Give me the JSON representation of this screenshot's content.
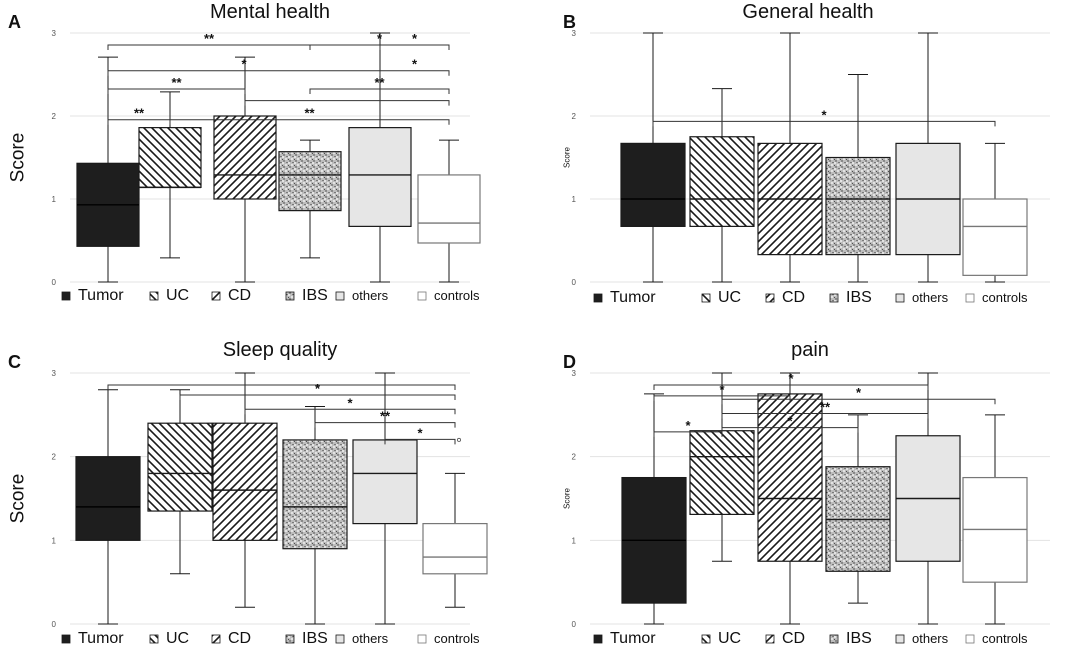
{
  "figure": {
    "panels_order": [
      "A",
      "B",
      "C",
      "D"
    ]
  },
  "chart_data": [
    {
      "panel": "A",
      "type": "boxplot",
      "title": "Mental health",
      "ylabel": "Score",
      "ylim": [
        0,
        3
      ],
      "yticks": [
        "0",
        "1",
        "2",
        "3"
      ],
      "categories": [
        "Tumor",
        "UC",
        "CD",
        "IBS",
        "others",
        "controls"
      ],
      "boxes": [
        {
          "min": 0,
          "q1": 0.43,
          "median": 0.93,
          "q3": 1.43,
          "max": 2.71
        },
        {
          "min": 0.29,
          "q1": 1.14,
          "median": 1.14,
          "q3": 1.86,
          "max": 2.29
        },
        {
          "min": 0,
          "q1": 1.0,
          "median": 1.29,
          "q3": 2.0,
          "max": 2.71
        },
        {
          "min": 0.29,
          "q1": 0.86,
          "median": 1.29,
          "q3": 1.57,
          "max": 1.71
        },
        {
          "min": 0,
          "q1": 0.67,
          "median": 1.29,
          "q3": 1.86,
          "max": 3.0
        },
        {
          "min": 0,
          "q1": 0.47,
          "median": 0.71,
          "q3": 1.29,
          "max": 1.71
        }
      ],
      "outliers": [],
      "significance": [
        {
          "from": 0,
          "to": 3,
          "level": 3.0,
          "label": "**"
        },
        {
          "from": 3,
          "to": 5,
          "level": 3.0,
          "label": "*"
        },
        {
          "from": 4,
          "to": 5,
          "level": 3.0,
          "label": "*"
        },
        {
          "from": 0,
          "to": 4,
          "level": 2.69,
          "label": "*"
        },
        {
          "from": 4,
          "to": 5,
          "level": 2.69,
          "label": "*"
        },
        {
          "from": 0,
          "to": 2,
          "level": 2.47,
          "label": "**"
        },
        {
          "from": 3,
          "to": 5,
          "level": 2.47,
          "label": "**"
        },
        {
          "from": 2,
          "to": 5,
          "level": 2.33,
          "label": ""
        },
        {
          "from": 0,
          "to": 1,
          "level": 2.1,
          "label": "**"
        },
        {
          "from": 1,
          "to": 5,
          "level": 2.1,
          "label": "**"
        }
      ],
      "legend_labels": [
        "Tumor",
        "UC",
        "CD",
        "IBS",
        "others",
        "controls"
      ]
    },
    {
      "panel": "B",
      "type": "boxplot",
      "title": "General health",
      "ylabel": "Score",
      "ylim": [
        0,
        3
      ],
      "yticks": [
        "0",
        "1",
        "2",
        "3"
      ],
      "categories": [
        "Tumor",
        "UC",
        "CD",
        "IBS",
        "others",
        "controls"
      ],
      "boxes": [
        {
          "min": 0,
          "q1": 0.67,
          "median": 1.0,
          "q3": 1.67,
          "max": 3.0
        },
        {
          "min": 0,
          "q1": 0.67,
          "median": 1.0,
          "q3": 1.75,
          "max": 2.33
        },
        {
          "min": 0,
          "q1": 0.33,
          "median": 1.0,
          "q3": 1.67,
          "max": 3.0
        },
        {
          "min": 0,
          "q1": 0.33,
          "median": 1.0,
          "q3": 1.5,
          "max": 2.5
        },
        {
          "min": 0,
          "q1": 0.33,
          "median": 1.0,
          "q3": 1.67,
          "max": 3.0
        },
        {
          "min": 0,
          "q1": 0.08,
          "median": 0.67,
          "q3": 1.0,
          "max": 1.67
        }
      ],
      "outliers": [],
      "significance": [
        {
          "from": 0,
          "to": 5,
          "level": 2.08,
          "label": "*"
        }
      ],
      "legend_labels": [
        "Tumor",
        "UC",
        "CD",
        "IBS",
        "others",
        "controls"
      ]
    },
    {
      "panel": "C",
      "type": "boxplot",
      "title": "Sleep quality",
      "ylabel": "Score",
      "ylim": [
        0,
        3
      ],
      "yticks": [
        "0",
        "1",
        "2",
        "3"
      ],
      "categories": [
        "Tumor",
        "UC",
        "CD",
        "IBS",
        "others",
        "controls"
      ],
      "boxes": [
        {
          "min": 0,
          "q1": 1.0,
          "median": 1.4,
          "q3": 2.0,
          "max": 2.8
        },
        {
          "min": 0.6,
          "q1": 1.35,
          "median": 1.8,
          "q3": 2.4,
          "max": 2.8
        },
        {
          "min": 0.2,
          "q1": 1.0,
          "median": 1.6,
          "q3": 2.4,
          "max": 3.0
        },
        {
          "min": 0,
          "q1": 0.9,
          "median": 1.4,
          "q3": 2.2,
          "max": 2.6
        },
        {
          "min": 0,
          "q1": 1.2,
          "median": 1.8,
          "q3": 2.2,
          "max": 3.0
        },
        {
          "min": 0.2,
          "q1": 0.6,
          "median": 0.8,
          "q3": 1.2,
          "max": 1.8
        }
      ],
      "outliers": [
        {
          "box": 5,
          "value": 2.2
        }
      ],
      "significance": [
        {
          "from": 0,
          "to": 5,
          "level": 3.0,
          "label": ""
        },
        {
          "from": 1,
          "to": 5,
          "level": 2.88,
          "label": "*"
        },
        {
          "from": 2,
          "to": 5,
          "level": 2.71,
          "label": "*"
        },
        {
          "from": 3,
          "to": 5,
          "level": 2.55,
          "label": "**"
        },
        {
          "from": 4,
          "to": 5,
          "level": 2.35,
          "label": "*"
        }
      ],
      "legend_labels": [
        "Tumor",
        "UC",
        "CD",
        "IBS",
        "others",
        "controls"
      ]
    },
    {
      "panel": "D",
      "type": "boxplot",
      "title": "pain",
      "ylabel": "Score",
      "ylim": [
        0,
        3
      ],
      "yticks": [
        "0",
        "1",
        "2",
        "3"
      ],
      "categories": [
        "Tumor",
        "UC",
        "CD",
        "IBS",
        "others",
        "controls"
      ],
      "boxes": [
        {
          "min": 0,
          "q1": 0.25,
          "median": 1.0,
          "q3": 1.75,
          "max": 2.75
        },
        {
          "min": 0.75,
          "q1": 1.31,
          "median": 2.0,
          "q3": 2.31,
          "max": 3.0
        },
        {
          "min": 0,
          "q1": 0.75,
          "median": 1.5,
          "q3": 2.75,
          "max": 3.0
        },
        {
          "min": 0.25,
          "q1": 0.63,
          "median": 1.25,
          "q3": 1.88,
          "max": 2.5
        },
        {
          "min": 0,
          "q1": 0.75,
          "median": 1.5,
          "q3": 2.25,
          "max": 3.0
        },
        {
          "min": 0,
          "q1": 0.5,
          "median": 1.13,
          "q3": 1.75,
          "max": 2.5
        }
      ],
      "outliers": [],
      "significance": [
        {
          "from": 0,
          "to": 4,
          "level": 3.0,
          "label": "*"
        },
        {
          "from": 0,
          "to": 2,
          "level": 2.87,
          "label": "*"
        },
        {
          "from": 1,
          "to": 5,
          "level": 2.83,
          "label": "*"
        },
        {
          "from": 1,
          "to": 4,
          "level": 2.66,
          "label": "**"
        },
        {
          "from": 1,
          "to": 3,
          "level": 2.49,
          "label": "*"
        },
        {
          "from": 0,
          "to": 1,
          "level": 2.44,
          "label": "*"
        }
      ],
      "legend_labels": [
        "Tumor",
        "UC",
        "CD",
        "IBS",
        "others",
        "controls"
      ]
    }
  ],
  "styles": {
    "fills": [
      "#1e1e1e",
      "hatch-back",
      "hatch-fwd",
      "speckle",
      "#e6e6e6",
      "#ffffff"
    ],
    "stroke": "#1a1a1a",
    "grid": "#e3e3e3",
    "axis_text": "#555555"
  }
}
